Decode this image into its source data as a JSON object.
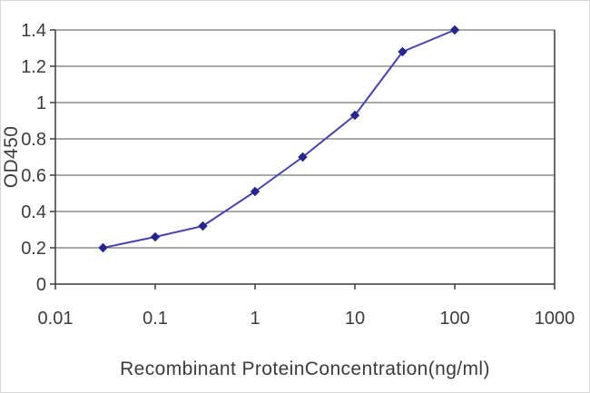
{
  "chart_data": {
    "type": "line",
    "title": "",
    "xlabel": "Recombinant ProteinConcentration(ng/ml)",
    "ylabel": "OD450",
    "x_scale": "log",
    "x": [
      0.03,
      0.1,
      0.3,
      1,
      3,
      10,
      30,
      100
    ],
    "y": [
      0.2,
      0.26,
      0.32,
      0.51,
      0.7,
      0.93,
      1.28,
      1.4
    ],
    "xlim": [
      0.01,
      1000
    ],
    "ylim": [
      0,
      1.4
    ],
    "x_ticks": [
      "0.01",
      "0.1",
      "1",
      "10",
      "100",
      "1000"
    ],
    "y_ticks": [
      "0",
      "0.2",
      "0.4",
      "0.6",
      "0.8",
      "1",
      "1.2",
      "1.4"
    ],
    "grid": "horizontal",
    "legend": "none",
    "marker": "diamond",
    "colors": {
      "line": "#4545ab",
      "marker": "#26268c",
      "grid": "#555555",
      "axis": "#3a3a3a",
      "text": "#3c3c3c"
    }
  }
}
